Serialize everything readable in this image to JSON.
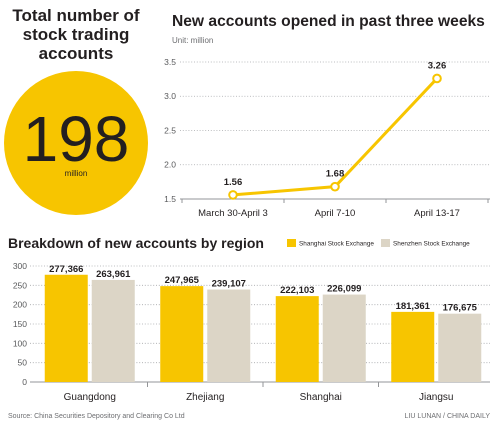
{
  "summary": {
    "title_lines": [
      "Total number of",
      "stock trading",
      "accounts"
    ],
    "value": "198",
    "unit": "million"
  },
  "colors": {
    "accent": "#F7C500"
  },
  "chart_data": [
    {
      "type": "line",
      "title": "New accounts opened in past three weeks",
      "subtitle": "Unit: million",
      "categories": [
        "March 30-April 3",
        "April 7-10",
        "April 13-17"
      ],
      "series": [
        {
          "values": [
            1.56,
            1.68,
            3.26
          ],
          "labels": [
            "1.56",
            "1.68",
            "3.26"
          ],
          "color": "#F7C500"
        }
      ],
      "yticks": [
        "1.5",
        "2.0",
        "2.5",
        "3.0",
        "3.5"
      ],
      "ylim": [
        1.5,
        3.5
      ],
      "grid": true
    },
    {
      "type": "bar",
      "title": "Breakdown of new accounts by region",
      "categories": [
        "Guangdong",
        "Zhejiang",
        "Shanghai",
        "Jiangsu"
      ],
      "series": [
        {
          "name": "Shanghai Stock Exchange",
          "values": [
            277.366,
            247.965,
            222.103,
            181.361
          ],
          "labels": [
            "277,366",
            "247,965",
            "222,103",
            "181,361"
          ],
          "color": "#F7C500"
        },
        {
          "name": "Shenzhen Stock Exchange",
          "values": [
            263.961,
            239.107,
            226.099,
            176.675
          ],
          "labels": [
            "263,961",
            "239,107",
            "226,099",
            "176,675"
          ],
          "color": "#DCD5C6"
        }
      ],
      "yticks": [
        "0",
        "50",
        "100",
        "150",
        "200",
        "250",
        "300"
      ],
      "ylim": [
        0,
        300
      ],
      "legend": "top-right",
      "grid": true
    }
  ],
  "footer": {
    "source": "Source: China Securities Depository and Clearing Co Ltd",
    "credit": "LIU LUNAN / CHINA DAILY"
  }
}
